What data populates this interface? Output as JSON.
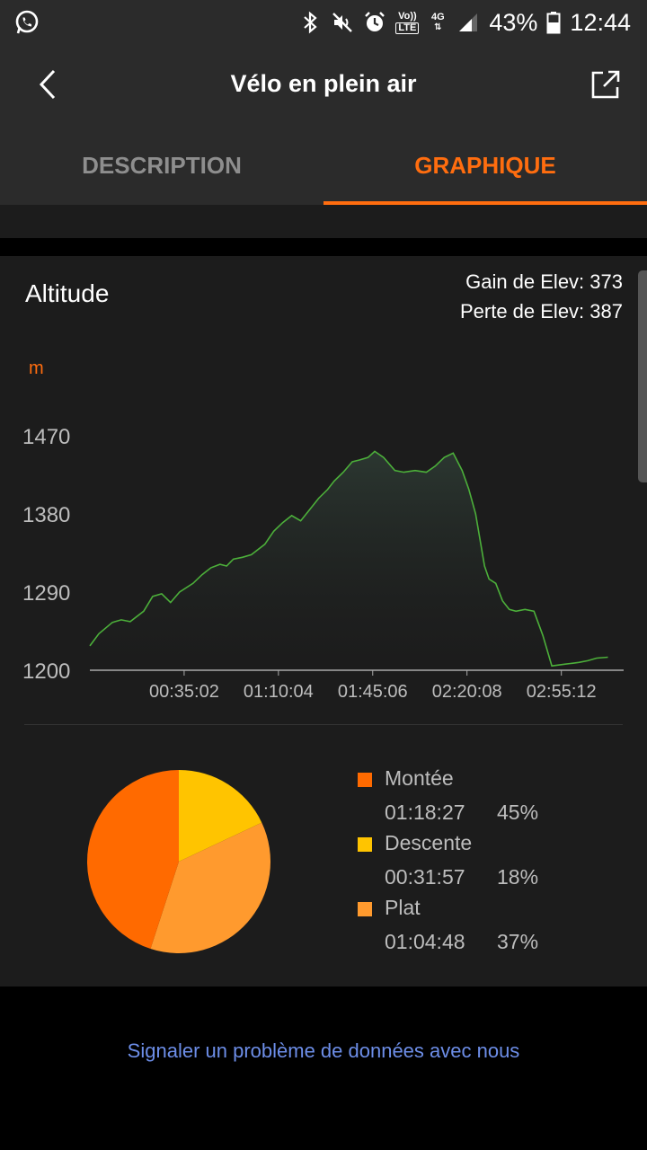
{
  "status_bar": {
    "battery": "43%",
    "time": "12:44",
    "volte_label": "Vo))",
    "lte_label": "LTE",
    "network_label": "4G",
    "icons": [
      "whatsapp-icon",
      "bluetooth-icon",
      "mute-icon",
      "alarm-icon",
      "volte-icon",
      "4g-icon",
      "signal-icon",
      "battery-icon"
    ]
  },
  "header": {
    "title": "Vélo en plein air",
    "icons": [
      "back-arrow-icon",
      "share-icon"
    ]
  },
  "tabs": [
    {
      "label": "DESCRIPTION",
      "active": false
    },
    {
      "label": "GRAPHIQUE",
      "active": true
    }
  ],
  "altitude": {
    "title": "Altitude",
    "gain": "Gain de Elev: 373",
    "loss": "Perte de Elev: 387",
    "unit": "m"
  },
  "chart_data": [
    {
      "type": "area",
      "title": "Altitude",
      "ylabel": "m",
      "xlabel": "",
      "ylim": [
        1200,
        1480
      ],
      "y_ticks": [
        "1470",
        "1380",
        "1290",
        "1200"
      ],
      "x_ticks": [
        "00:35:02",
        "01:10:04",
        "01:45:06",
        "02:20:08",
        "02:55:12"
      ],
      "x_tick_seconds": [
        2102,
        4204,
        6306,
        8408,
        10512
      ],
      "x_range_seconds": [
        0,
        11700
      ],
      "line_color": "#4caf3a",
      "series": [
        {
          "x": [
            0,
            200,
            500,
            700,
            900,
            1200,
            1400,
            1600,
            1800,
            2000,
            2300,
            2500,
            2700,
            2900,
            3050,
            3200,
            3400,
            3600,
            3900,
            4100,
            4300,
            4500,
            4700,
            4900,
            5100,
            5300,
            5450,
            5650,
            5850,
            6000,
            6200,
            6350,
            6550,
            6800,
            7000,
            7250,
            7500,
            7700,
            7900,
            8100,
            8300,
            8450,
            8600,
            8800,
            8900,
            9050,
            9200,
            9350,
            9500,
            9700,
            9900,
            10100,
            10300,
            10450,
            10600,
            10750,
            10900,
            11100,
            11300,
            11550
          ],
          "y": [
            1228,
            1242,
            1255,
            1258,
            1256,
            1268,
            1285,
            1288,
            1278,
            1290,
            1300,
            1310,
            1318,
            1322,
            1320,
            1328,
            1330,
            1333,
            1345,
            1360,
            1370,
            1378,
            1372,
            1385,
            1398,
            1408,
            1418,
            1428,
            1440,
            1442,
            1445,
            1452,
            1445,
            1430,
            1428,
            1430,
            1428,
            1435,
            1445,
            1450,
            1430,
            1408,
            1380,
            1320,
            1305,
            1300,
            1280,
            1270,
            1268,
            1270,
            1268,
            1240,
            1205,
            1206,
            1207,
            1208,
            1209,
            1211,
            1214,
            1215
          ]
        }
      ]
    },
    {
      "type": "pie",
      "categories": [
        "Montée",
        "Descente",
        "Plat"
      ],
      "values": [
        45,
        18,
        37
      ],
      "times": [
        "01:18:27",
        "00:31:57",
        "01:04:48"
      ],
      "percent_labels": [
        "45%",
        "18%",
        "37%"
      ],
      "colors": [
        "#ff6a00",
        "#ffc400",
        "#ff9a2e"
      ],
      "legend_position": "right"
    }
  ],
  "footer": {
    "report_link": "Signaler un problème de données avec nous"
  }
}
